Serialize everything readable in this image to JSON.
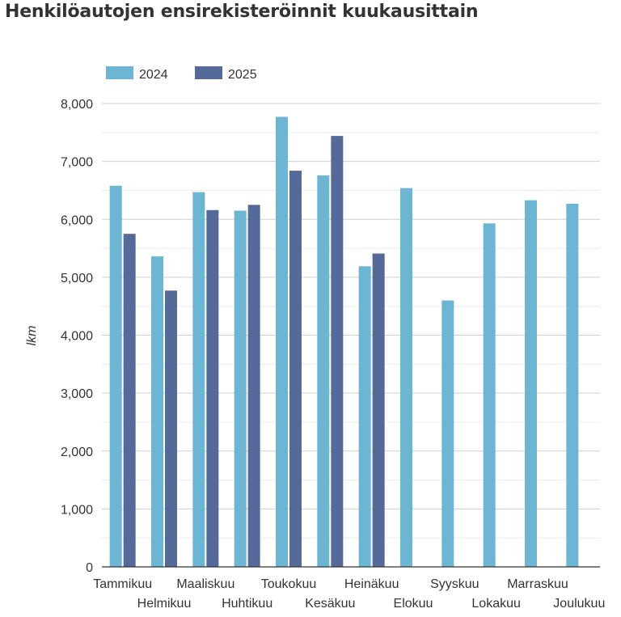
{
  "chart_data": {
    "type": "bar",
    "title": "Henkilöautojen ensirekisteröinnit kuukausittain",
    "xlabel": "",
    "ylabel": "lkm",
    "ylim": [
      0,
      8000
    ],
    "yticks": [
      0,
      1000,
      2000,
      3000,
      4000,
      5000,
      6000,
      7000,
      8000
    ],
    "ytick_labels": [
      "0",
      "1,000",
      "2,000",
      "3,000",
      "4,000",
      "5,000",
      "6,000",
      "7,000",
      "8,000"
    ],
    "grid": true,
    "legend": "top-left",
    "categories": [
      "Tammikuu",
      "Helmikuu",
      "Maaliskuu",
      "Huhtikuu",
      "Toukokuu",
      "Kesäkuu",
      "Heinäkuu",
      "Elokuu",
      "Syyskuu",
      "Lokakuu",
      "Marraskuu",
      "Joulukuu"
    ],
    "series": [
      {
        "name": "2024",
        "color": "#6cb6d3",
        "values": [
          6580,
          5360,
          6470,
          6150,
          7770,
          6760,
          5190,
          6540,
          4600,
          5930,
          6330,
          6270
        ]
      },
      {
        "name": "2025",
        "color": "#556a98",
        "values": [
          5750,
          4770,
          6160,
          6250,
          6840,
          7440,
          5410,
          null,
          null,
          null,
          null,
          null
        ]
      }
    ]
  }
}
